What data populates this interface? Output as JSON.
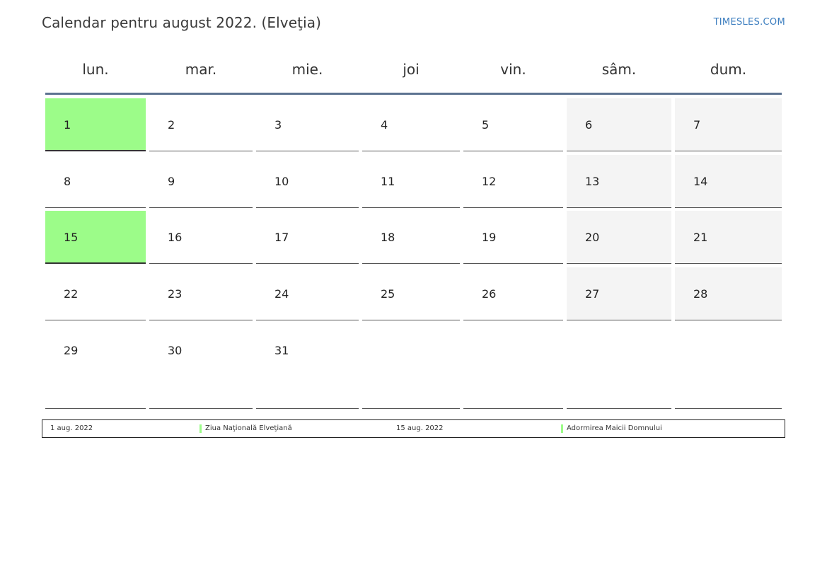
{
  "header": {
    "title": "Calendar pentru august 2022. (Elveţia)",
    "brand": "TIMESLES.COM"
  },
  "weekdays": [
    "lun.",
    "mar.",
    "mie.",
    "joi",
    "vin.",
    "sâm.",
    "dum."
  ],
  "colors": {
    "holiday": "#9cfc89",
    "weekend": "#f4f4f4",
    "header_rule": "#5d7391",
    "brand": "#3b7dbf"
  },
  "weeks": [
    [
      {
        "day": "1",
        "holiday": true
      },
      {
        "day": "2"
      },
      {
        "day": "3"
      },
      {
        "day": "4"
      },
      {
        "day": "5"
      },
      {
        "day": "6",
        "weekend": true
      },
      {
        "day": "7",
        "weekend": true
      }
    ],
    [
      {
        "day": "8"
      },
      {
        "day": "9"
      },
      {
        "day": "10"
      },
      {
        "day": "11"
      },
      {
        "day": "12"
      },
      {
        "day": "13",
        "weekend": true
      },
      {
        "day": "14",
        "weekend": true
      }
    ],
    [
      {
        "day": "15",
        "holiday": true
      },
      {
        "day": "16"
      },
      {
        "day": "17"
      },
      {
        "day": "18"
      },
      {
        "day": "19"
      },
      {
        "day": "20",
        "weekend": true
      },
      {
        "day": "21",
        "weekend": true
      }
    ],
    [
      {
        "day": "22"
      },
      {
        "day": "23"
      },
      {
        "day": "24"
      },
      {
        "day": "25"
      },
      {
        "day": "26"
      },
      {
        "day": "27",
        "weekend": true
      },
      {
        "day": "28",
        "weekend": true
      }
    ],
    [
      {
        "day": "29"
      },
      {
        "day": "30"
      },
      {
        "day": "31"
      },
      {
        "day": ""
      },
      {
        "day": ""
      },
      {
        "day": ""
      },
      {
        "day": ""
      }
    ]
  ],
  "holidays": [
    {
      "date": "1 aug. 2022",
      "name": "Ziua Naţională Elveţiană"
    },
    {
      "date": "15 aug. 2022",
      "name": "Adormirea Maicii Domnului"
    }
  ]
}
